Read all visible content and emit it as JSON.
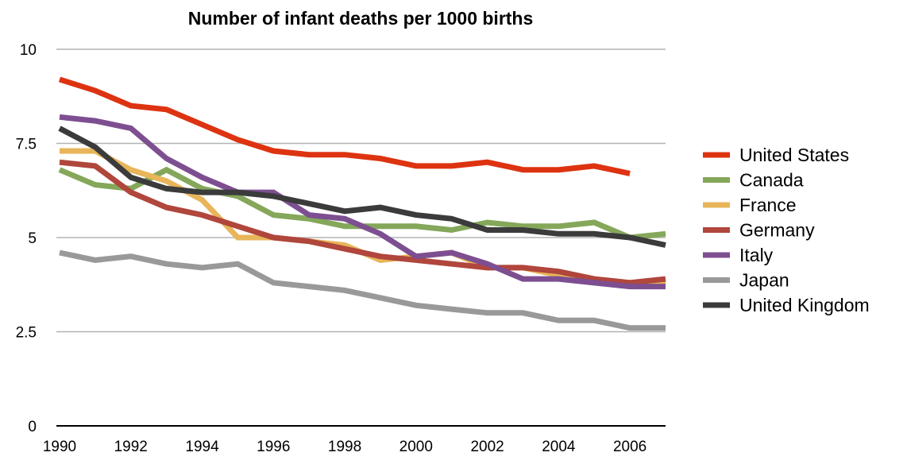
{
  "chart_data": {
    "type": "line",
    "title": "Number of infant deaths per 1000 births",
    "xlabel": "",
    "ylabel": "",
    "x": [
      1990,
      1991,
      1992,
      1993,
      1994,
      1995,
      1996,
      1997,
      1998,
      1999,
      2000,
      2001,
      2002,
      2003,
      2004,
      2005,
      2006,
      2007
    ],
    "xlim": [
      1990,
      2007
    ],
    "ylim": [
      0,
      10
    ],
    "y_ticks": [
      0,
      2.5,
      5,
      7.5,
      10
    ],
    "y_tick_labels": [
      "0",
      "2.5",
      "5",
      "7.5",
      "10"
    ],
    "x_ticks": [
      1990,
      1992,
      1994,
      1996,
      1998,
      2000,
      2002,
      2004,
      2006
    ],
    "x_tick_labels": [
      "1990",
      "1992",
      "1994",
      "1996",
      "1998",
      "2000",
      "2002",
      "2004",
      "2006"
    ],
    "grid": true,
    "legend_position": "right",
    "series": [
      {
        "name": "United States",
        "color": "#dd3311",
        "values": [
          9.2,
          8.9,
          8.5,
          8.4,
          8.0,
          7.6,
          7.3,
          7.2,
          7.2,
          7.1,
          6.9,
          6.9,
          7.0,
          6.8,
          6.8,
          6.9,
          6.7,
          null
        ]
      },
      {
        "name": "Canada",
        "color": "#84a75a",
        "values": [
          6.8,
          6.4,
          6.3,
          6.8,
          6.3,
          6.1,
          5.6,
          5.5,
          5.3,
          5.3,
          5.3,
          5.2,
          5.4,
          5.3,
          5.3,
          5.4,
          5.0,
          5.1
        ]
      },
      {
        "name": "France",
        "color": "#e8b55a",
        "values": [
          7.3,
          7.3,
          6.8,
          6.5,
          6.0,
          5.0,
          5.0,
          4.9,
          4.8,
          4.4,
          4.5,
          4.6,
          4.2,
          4.2,
          4.0,
          3.8,
          3.8,
          3.8
        ]
      },
      {
        "name": "Germany",
        "color": "#b0463c",
        "values": [
          7.0,
          6.9,
          6.2,
          5.8,
          5.6,
          5.3,
          5.0,
          4.9,
          4.7,
          4.5,
          4.4,
          4.3,
          4.2,
          4.2,
          4.1,
          3.9,
          3.8,
          3.9
        ]
      },
      {
        "name": "Italy",
        "color": "#7d4f91",
        "values": [
          8.2,
          8.1,
          7.9,
          7.1,
          6.6,
          6.2,
          6.2,
          5.6,
          5.5,
          5.1,
          4.5,
          4.6,
          4.3,
          3.9,
          3.9,
          3.8,
          3.7,
          3.7
        ]
      },
      {
        "name": "Japan",
        "color": "#999999",
        "values": [
          4.6,
          4.4,
          4.5,
          4.3,
          4.2,
          4.3,
          3.8,
          3.7,
          3.6,
          3.4,
          3.2,
          3.1,
          3.0,
          3.0,
          2.8,
          2.8,
          2.6,
          2.6
        ]
      },
      {
        "name": "United Kingdom",
        "color": "#3b3b3b",
        "values": [
          7.9,
          7.4,
          6.6,
          6.3,
          6.2,
          6.2,
          6.1,
          5.9,
          5.7,
          5.8,
          5.6,
          5.5,
          5.2,
          5.2,
          5.1,
          5.1,
          5.0,
          4.8
        ]
      }
    ]
  }
}
